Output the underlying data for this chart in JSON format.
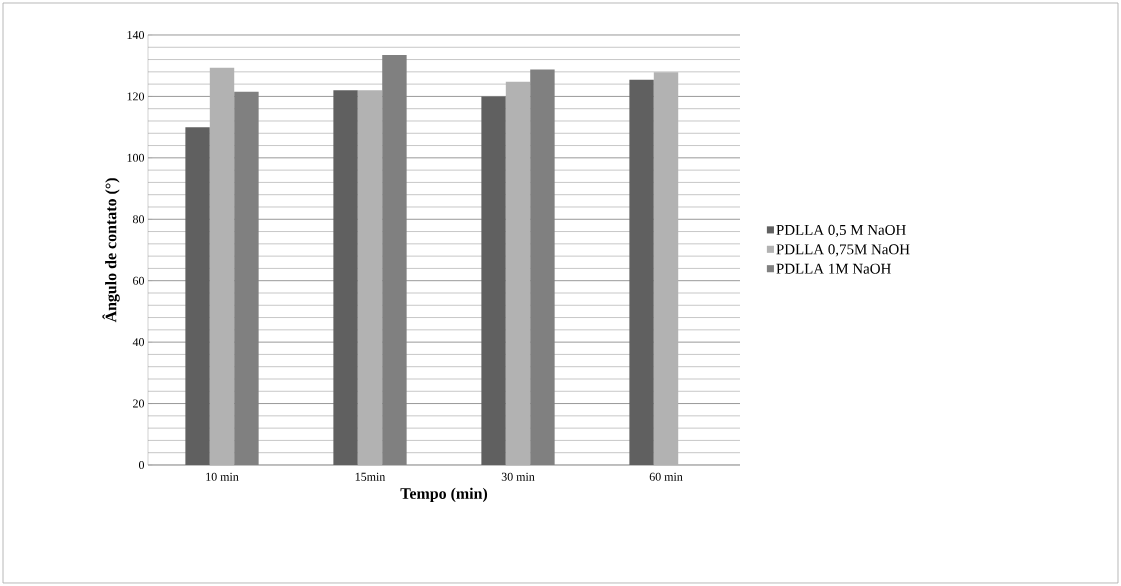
{
  "chart_data": {
    "type": "bar",
    "xlabel": "Tempo (min)",
    "ylabel": "Ângulo  de contato (°)",
    "categories": [
      "10 min",
      "15min",
      "30 min",
      "60 min"
    ],
    "series": [
      {
        "name": "PDLLA 0,5 M NaOH",
        "color": "#606060",
        "values": [
          110,
          122,
          120,
          125.4
        ]
      },
      {
        "name": "PDLLA 0,75M NaOH",
        "color": "#b2b2b2",
        "values": [
          129.3,
          122,
          124.8,
          127.9
        ]
      },
      {
        "name": "PDLLA 1M NaOH",
        "color": "#808080",
        "values": [
          121.5,
          133.5,
          128.8,
          null
        ]
      }
    ],
    "ylim": [
      0,
      140
    ],
    "yticks": [
      0,
      20,
      40,
      60,
      80,
      100,
      120,
      140
    ],
    "grid": "y",
    "legend": "right"
  }
}
